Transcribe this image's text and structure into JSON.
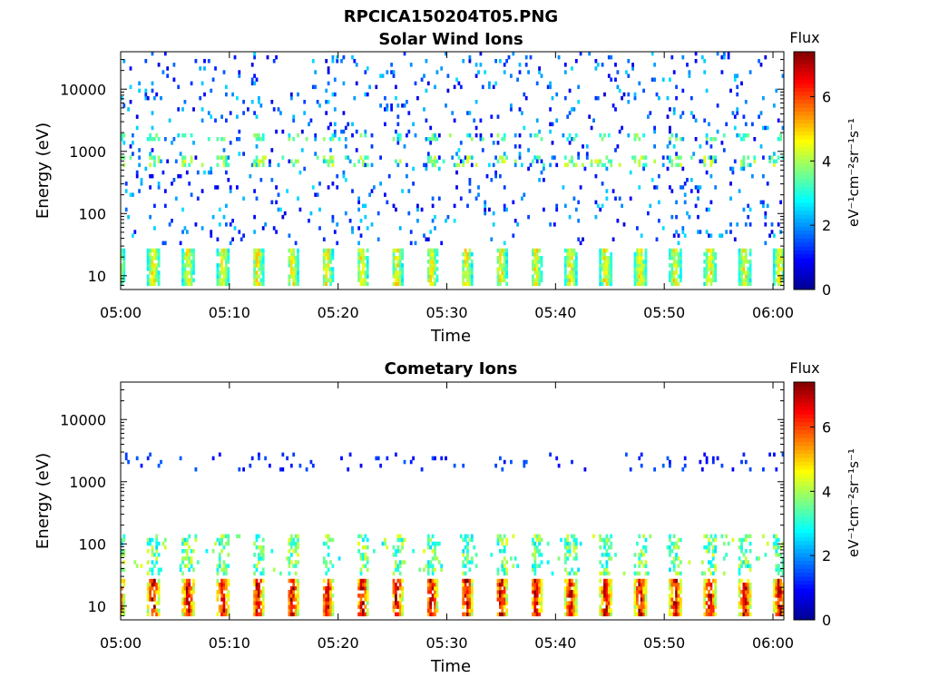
{
  "figure": {
    "title": "RPCICA150204T05.PNG",
    "colorbar_title": "Flux",
    "colorbar_label": "eV⁻¹cm⁻²sr⁻¹s⁻¹",
    "colorbar_ticks": [
      "0",
      "2",
      "4",
      "6"
    ]
  },
  "colors": {
    "colormap": [
      "#00008f",
      "#0000ff",
      "#0080ff",
      "#00ffff",
      "#80ff80",
      "#ffff00",
      "#ff8000",
      "#ff0000",
      "#800000"
    ]
  },
  "chart_data": [
    {
      "type": "heatmap",
      "title": "Solar Wind Ions",
      "xlabel": "Time",
      "ylabel": "Energy (eV)",
      "x_ticks": [
        "05:00",
        "05:10",
        "05:20",
        "05:30",
        "05:40",
        "05:50",
        "06:00"
      ],
      "y_ticks": [
        "10",
        "100",
        "1000",
        "10000"
      ],
      "y_scale": "log",
      "xlim": [
        "05:00",
        "06:01"
      ],
      "ylim": [
        6,
        40000
      ],
      "colorbar_range": [
        0,
        7.4
      ],
      "sweep_period_min": 3.2,
      "sweep_start_min": 2.4,
      "low_energy_band": {
        "energy_range_eV": [
          7,
          28
        ],
        "peak_flux": 4.8
      },
      "populations": [
        {
          "energy_range_eV": [
            1400,
            2000
          ],
          "flux_range": [
            2.8,
            4.0
          ]
        },
        {
          "energy_range_eV": [
            600,
            900
          ],
          "flux_range": [
            3.0,
            4.5
          ]
        },
        {
          "energy_range_eV": [
            30,
            40000
          ],
          "flux_range": [
            0.6,
            2.6
          ],
          "sparse": true
        }
      ]
    },
    {
      "type": "heatmap",
      "title": "Cometary Ions",
      "xlabel": "Time",
      "ylabel": "Energy (eV)",
      "x_ticks": [
        "05:00",
        "05:10",
        "05:20",
        "05:30",
        "05:40",
        "05:50",
        "06:00"
      ],
      "y_ticks": [
        "10",
        "100",
        "1000",
        "10000"
      ],
      "y_scale": "log",
      "xlim": [
        "05:00",
        "06:01"
      ],
      "ylim": [
        6,
        40000
      ],
      "colorbar_range": [
        0,
        7.4
      ],
      "sweep_period_min": 3.2,
      "sweep_start_min": 2.4,
      "low_energy_band": {
        "energy_range_eV": [
          7,
          28
        ],
        "peak_flux": 7.0
      },
      "populations": [
        {
          "energy_range_eV": [
            30,
            150
          ],
          "flux_range": [
            2.5,
            4.5
          ]
        },
        {
          "energy_range_eV": [
            1500,
            3000
          ],
          "flux_range": [
            0.8,
            1.6
          ],
          "sparse": true
        }
      ]
    }
  ]
}
